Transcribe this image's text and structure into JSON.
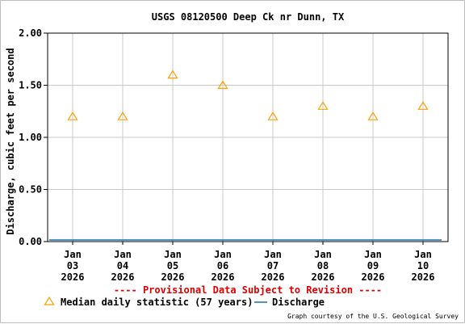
{
  "chart_data": {
    "type": "scatter",
    "title": "USGS 08120500 Deep Ck nr Dunn, TX",
    "ylabel": "Discharge, cubic feet per second",
    "xlabel": "",
    "ylim": [
      0.0,
      2.0
    ],
    "yticks": [
      "0.00",
      "0.50",
      "1.00",
      "1.50",
      "2.00"
    ],
    "xticks": [
      {
        "month": "Jan",
        "day": "03",
        "year": "2026"
      },
      {
        "month": "Jan",
        "day": "04",
        "year": "2026"
      },
      {
        "month": "Jan",
        "day": "05",
        "year": "2026"
      },
      {
        "month": "Jan",
        "day": "06",
        "year": "2026"
      },
      {
        "month": "Jan",
        "day": "07",
        "year": "2026"
      },
      {
        "month": "Jan",
        "day": "08",
        "year": "2026"
      },
      {
        "month": "Jan",
        "day": "09",
        "year": "2026"
      },
      {
        "month": "Jan",
        "day": "10",
        "year": "2026"
      }
    ],
    "grid": true,
    "series": [
      {
        "name": "Median daily statistic (57 years)",
        "marker": "triangle",
        "color": "#ff9f00",
        "x": [
          "2026-01-03",
          "2026-01-04",
          "2026-01-05",
          "2026-01-06",
          "2026-01-07",
          "2026-01-08",
          "2026-01-09",
          "2026-01-10"
        ],
        "values": [
          1.2,
          1.2,
          1.6,
          1.5,
          1.2,
          1.3,
          1.2,
          1.3
        ]
      },
      {
        "name": "Discharge",
        "marker": "line",
        "color": "#1a6ea8",
        "x": [
          "2026-01-02",
          "2026-01-10"
        ],
        "values": [
          0.0,
          0.0
        ]
      }
    ],
    "notice": "---- Provisional Data Subject to Revision ----",
    "notice_color": "#dd0000",
    "credit": "Graph courtesy of the U.S. Geological Survey"
  }
}
